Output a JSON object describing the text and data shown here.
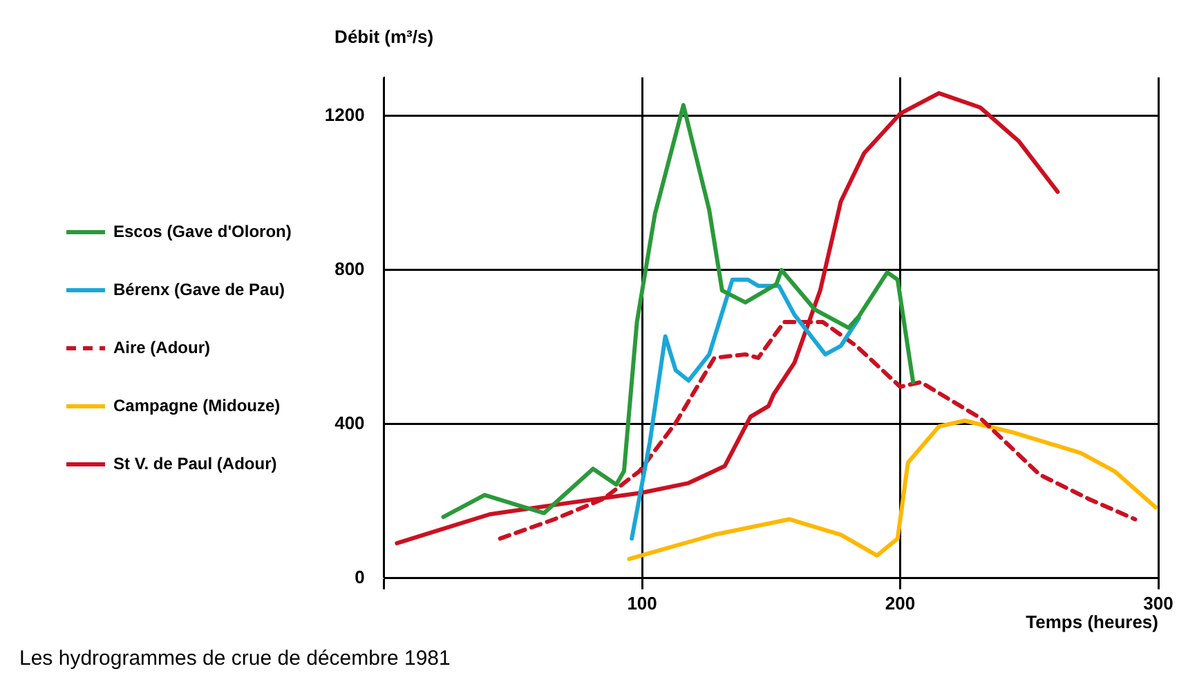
{
  "chart_data": {
    "type": "line",
    "ylabel": "Débit (m³/s)",
    "xlabel": "Temps (heures)",
    "annotations": [
      "Les hydrogrammes de crue de décembre 1981"
    ],
    "xlim": [
      0,
      300
    ],
    "xticks": [
      {
        "value": 0,
        "label": null
      },
      100,
      200,
      300
    ],
    "ylim": [
      0,
      1300
    ],
    "yticks": [
      0,
      400,
      800,
      1200
    ],
    "grid": true,
    "legend": "left",
    "marker": "none",
    "series": [
      {
        "name": "Escos (Gave d'Oloron)",
        "color": "#2a9a3a",
        "x": [
          23,
          39,
          62,
          81,
          90,
          93,
          98,
          105,
          116,
          126,
          131,
          140,
          152,
          154,
          167,
          180,
          184,
          195,
          199,
          205
        ],
        "values": [
          159,
          216,
          169,
          284,
          243,
          278,
          665,
          946,
          1228,
          956,
          747,
          716,
          763,
          800,
          697,
          650,
          680,
          794,
          775,
          509
        ]
      },
      {
        "name": "Bérenx (Gave de Pau)",
        "color": "#1aa7d8",
        "x": [
          96,
          103,
          109,
          113,
          118,
          126,
          135,
          141,
          145,
          153,
          159,
          171,
          177,
          184
        ],
        "values": [
          103,
          353,
          628,
          540,
          513,
          581,
          775,
          775,
          759,
          759,
          684,
          581,
          603,
          675
        ]
      },
      {
        "name": "Aire (Adour)",
        "color": "#cc1021",
        "line_style": "dashed",
        "x": [
          45,
          66,
          85,
          99,
          113,
          128,
          140,
          145,
          155,
          170,
          183,
          200,
          208,
          231,
          254,
          273,
          291
        ],
        "values": [
          103,
          153,
          206,
          278,
          403,
          572,
          581,
          572,
          665,
          665,
          603,
          497,
          509,
          416,
          269,
          206,
          153
        ]
      },
      {
        "name": "Campagne (Midouze)",
        "color": "#ffb800",
        "x": [
          95,
          128,
          157,
          177,
          191,
          199,
          203,
          215,
          225,
          244,
          270,
          283,
          299
        ],
        "values": [
          50,
          113,
          153,
          113,
          59,
          103,
          300,
          394,
          409,
          378,
          325,
          278,
          184
        ]
      },
      {
        "name": "St V. de Paul (Adour)",
        "color": "#cc1021",
        "x": [
          5,
          41,
          70,
          100,
          118,
          132,
          142,
          149,
          151,
          159,
          169,
          177,
          186,
          200,
          215,
          231,
          246,
          261
        ],
        "values": [
          91,
          166,
          194,
          222,
          247,
          291,
          419,
          447,
          478,
          559,
          747,
          978,
          1103,
          1206,
          1259,
          1222,
          1134,
          1003
        ]
      }
    ]
  }
}
